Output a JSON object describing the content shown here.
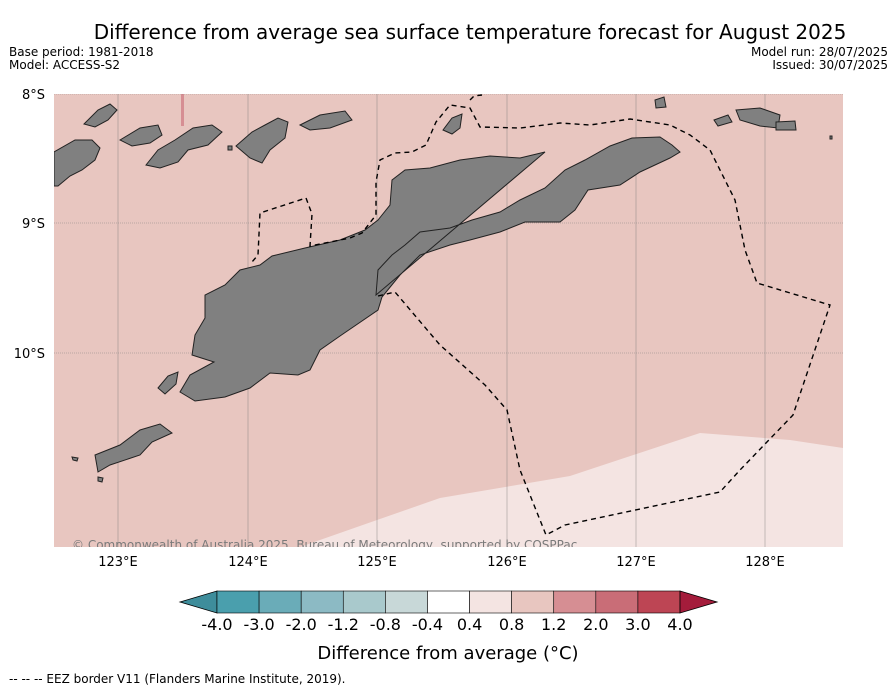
{
  "title": "Difference from average sea surface temperature forecast for August 2025",
  "meta_left": {
    "base_period": "Base period: 1981-2018",
    "model": "Model: ACCESS-S2"
  },
  "meta_right": {
    "model_run": "Model run: 28/07/2025",
    "issued": "Issued: 30/07/2025"
  },
  "map": {
    "lon_ticks": [
      "123°E",
      "124°E",
      "125°E",
      "126°E",
      "127°E",
      "128°E"
    ],
    "lat_ticks": [
      "8°S",
      "9°S",
      "10°S"
    ],
    "copyright": "© Commonwealth of Australia 2025, Bureau of Meteorology, supported by COSPPac",
    "colors": {
      "anomaly_0_4_to_0_8": "#f4e4e2",
      "anomaly_0_8_to_1_2": "#e8c6c0",
      "land": "#808080"
    }
  },
  "colorbar": {
    "title": "Difference from average (°C)",
    "tick_labels": [
      "-4.0",
      "-3.0",
      "-2.0",
      "-1.2",
      "-0.8",
      "-0.4",
      "0.4",
      "0.8",
      "1.2",
      "2.0",
      "3.0",
      "4.0"
    ],
    "colors": [
      "#4a9fad",
      "#6aacb8",
      "#8cbac4",
      "#a9c9cc",
      "#c8d8d8",
      "#ffffff",
      "#f4e4e2",
      "#e8c6c0",
      "#d68e93",
      "#c96d77",
      "#bd4554"
    ],
    "under_color": "#3e8d9b",
    "over_color": "#a41c3b"
  },
  "footnote": "--  --  -- EEZ border V11 (Flanders Marine Institute, 2019)."
}
